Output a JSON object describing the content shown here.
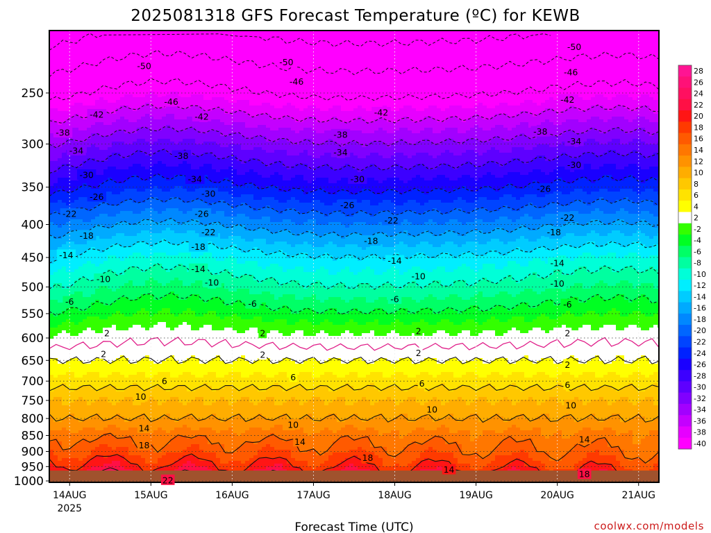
{
  "page": {
    "title": "2025081318 GFS Forecast Temperature (ºC) for KEWB",
    "credit": "coolwx.com/models",
    "credit_color": "#cc1a1a"
  },
  "chart_data": {
    "type": "heatmap",
    "title": "2025081318 GFS Forecast Temperature (ºC) for KEWB",
    "xlabel": "Forecast Time (UTC)",
    "ylabel": "",
    "x_axis": {
      "ticks": [
        "14AUG",
        "15AUG",
        "16AUG",
        "17AUG",
        "18AUG",
        "19AUG",
        "20AUG",
        "21AUG"
      ],
      "tick_hours": [
        6,
        30,
        54,
        78,
        102,
        126,
        150,
        174
      ],
      "first_tick_sublabel": "2025",
      "range_hours": [
        0,
        180
      ],
      "start_time": "2025-08-13 18Z"
    },
    "y_axis": {
      "ticks": [
        250,
        300,
        350,
        400,
        450,
        500,
        550,
        600,
        650,
        700,
        750,
        800,
        850,
        900,
        950,
        1000
      ],
      "range_hPa": [
        200,
        1005
      ],
      "scale": "log",
      "inverted": true
    },
    "grid": true,
    "colorbar": {
      "position": "right",
      "labels": [
        28,
        26,
        24,
        22,
        20,
        18,
        16,
        14,
        12,
        10,
        8,
        6,
        4,
        2,
        -2,
        -4,
        -6,
        -8,
        -10,
        -12,
        -14,
        -16,
        -18,
        -20,
        -22,
        -24,
        -26,
        -28,
        -30,
        -32,
        -34,
        -36,
        -38,
        -40
      ],
      "colors": [
        "#ff1493",
        "#ff1177",
        "#ff1060",
        "#ff1045",
        "#ff1515",
        "#ff3a00",
        "#ff5a00",
        "#ff7700",
        "#ff9200",
        "#ffad00",
        "#ffc800",
        "#ffe300",
        "#ffff00",
        "#ffffff",
        "#33ff00",
        "#00ff22",
        "#00ff66",
        "#00ffa0",
        "#00ffd8",
        "#00eeff",
        "#00ccff",
        "#00aaff",
        "#0088ff",
        "#0066ff",
        "#0044ff",
        "#0022ff",
        "#1a00ff",
        "#3c00ff",
        "#5e00ff",
        "#8000ff",
        "#a200ff",
        "#c400ff",
        "#e600ff",
        "#ff00ff"
      ]
    },
    "profile": {
      "pressure_hPa": [
        1000,
        950,
        900,
        850,
        800,
        750,
        700,
        650,
        600,
        550,
        500,
        450,
        400,
        350,
        300,
        250,
        200
      ],
      "temperature_C": [
        22,
        18,
        15,
        13,
        10,
        8,
        5,
        2,
        -1,
        -5,
        -9,
        -13,
        -19,
        -26,
        -33,
        -42,
        -51
      ]
    },
    "contour_labels": [
      {
        "text": "-50",
        "hour": 28,
        "p": 227
      },
      {
        "text": "-50",
        "hour": 70,
        "p": 224
      },
      {
        "text": "-50",
        "hour": 155,
        "p": 212
      },
      {
        "text": "-46",
        "hour": 36,
        "p": 258
      },
      {
        "text": "-46",
        "hour": 73,
        "p": 240
      },
      {
        "text": "-46",
        "hour": 154,
        "p": 232
      },
      {
        "text": "-42",
        "hour": 14,
        "p": 270
      },
      {
        "text": "-42",
        "hour": 45,
        "p": 272
      },
      {
        "text": "-42",
        "hour": 98,
        "p": 268
      },
      {
        "text": "-42",
        "hour": 153,
        "p": 256
      },
      {
        "text": "-38",
        "hour": 4,
        "p": 288
      },
      {
        "text": "-38",
        "hour": 39,
        "p": 313
      },
      {
        "text": "-38",
        "hour": 86,
        "p": 290
      },
      {
        "text": "-38",
        "hour": 145,
        "p": 287
      },
      {
        "text": "-34",
        "hour": 8,
        "p": 307
      },
      {
        "text": "-34",
        "hour": 43,
        "p": 340
      },
      {
        "text": "-34",
        "hour": 86,
        "p": 309
      },
      {
        "text": "-34",
        "hour": 155,
        "p": 297
      },
      {
        "text": "-30",
        "hour": 11,
        "p": 335
      },
      {
        "text": "-30",
        "hour": 47,
        "p": 358
      },
      {
        "text": "-30",
        "hour": 91,
        "p": 340
      },
      {
        "text": "-30",
        "hour": 155,
        "p": 323
      },
      {
        "text": "-26",
        "hour": 14,
        "p": 362
      },
      {
        "text": "-26",
        "hour": 45,
        "p": 385
      },
      {
        "text": "-26",
        "hour": 88,
        "p": 373
      },
      {
        "text": "-26",
        "hour": 146,
        "p": 352
      },
      {
        "text": "-22",
        "hour": 6,
        "p": 385
      },
      {
        "text": "-22",
        "hour": 47,
        "p": 411
      },
      {
        "text": "-22",
        "hour": 101,
        "p": 394
      },
      {
        "text": "-22",
        "hour": 153,
        "p": 390
      },
      {
        "text": "-18",
        "hour": 11,
        "p": 416
      },
      {
        "text": "-18",
        "hour": 44,
        "p": 433
      },
      {
        "text": "-18",
        "hour": 95,
        "p": 424
      },
      {
        "text": "-18",
        "hour": 149,
        "p": 411
      },
      {
        "text": "-14",
        "hour": 5,
        "p": 446
      },
      {
        "text": "-14",
        "hour": 44,
        "p": 469
      },
      {
        "text": "-14",
        "hour": 102,
        "p": 455
      },
      {
        "text": "-14",
        "hour": 150,
        "p": 459
      },
      {
        "text": "-10",
        "hour": 16,
        "p": 486
      },
      {
        "text": "-10",
        "hour": 48,
        "p": 492
      },
      {
        "text": "-10",
        "hour": 109,
        "p": 481
      },
      {
        "text": "-10",
        "hour": 150,
        "p": 494
      },
      {
        "text": "-6",
        "hour": 6,
        "p": 527
      },
      {
        "text": "-6",
        "hour": 60,
        "p": 531
      },
      {
        "text": "-6",
        "hour": 102,
        "p": 522
      },
      {
        "text": "-6",
        "hour": 153,
        "p": 532
      },
      {
        "text": "2",
        "hour": 17,
        "p": 590
      },
      {
        "text": "2",
        "hour": 63,
        "p": 590
      },
      {
        "text": "2",
        "hour": 109,
        "p": 585
      },
      {
        "text": "2",
        "hour": 153,
        "p": 590
      },
      {
        "text": "2",
        "hour": 16,
        "p": 635
      },
      {
        "text": "2",
        "hour": 63,
        "p": 637
      },
      {
        "text": "2",
        "hour": 109,
        "p": 633
      },
      {
        "text": "2",
        "hour": 153,
        "p": 660
      },
      {
        "text": "6",
        "hour": 34,
        "p": 700
      },
      {
        "text": "6",
        "hour": 72,
        "p": 690
      },
      {
        "text": "6",
        "hour": 110,
        "p": 706
      },
      {
        "text": "6",
        "hour": 153,
        "p": 709
      },
      {
        "text": "10",
        "hour": 27,
        "p": 740
      },
      {
        "text": "10",
        "hour": 72,
        "p": 818
      },
      {
        "text": "10",
        "hour": 113,
        "p": 775
      },
      {
        "text": "10",
        "hour": 154,
        "p": 763
      },
      {
        "text": "14",
        "hour": 28,
        "p": 828
      },
      {
        "text": "14",
        "hour": 74,
        "p": 869
      },
      {
        "text": "14",
        "hour": 118,
        "p": 960
      },
      {
        "text": "14",
        "hour": 158,
        "p": 862
      },
      {
        "text": "18",
        "hour": 28,
        "p": 880
      },
      {
        "text": "18",
        "hour": 94,
        "p": 920
      },
      {
        "text": "18",
        "hour": 158,
        "p": 976
      },
      {
        "text": "22",
        "hour": 35,
        "p": 997
      }
    ]
  }
}
